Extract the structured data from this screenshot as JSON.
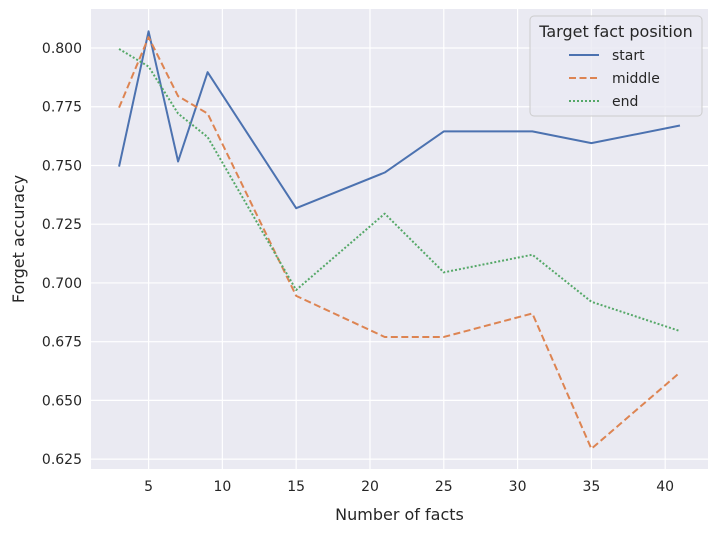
{
  "chart_data": {
    "type": "line",
    "xlabel": "Number of facts",
    "ylabel": "Forget accuracy",
    "xlim": [
      1.1,
      42.9
    ],
    "ylim": [
      0.6208,
      0.8166
    ],
    "xticks": [
      5,
      10,
      15,
      20,
      25,
      30,
      35,
      40
    ],
    "yticks": [
      0.625,
      0.65,
      0.675,
      0.7,
      0.725,
      0.75,
      0.775,
      0.8
    ],
    "grid": true,
    "legend": {
      "title": "Target fact position",
      "placement": "top-right"
    },
    "series": [
      {
        "name": "start",
        "color": "#4c72b0",
        "dash": "solid",
        "points": [
          [
            3,
            0.7495
          ],
          [
            5,
            0.8071
          ],
          [
            7,
            0.7517
          ],
          [
            9,
            0.7897
          ],
          [
            15,
            0.7318
          ],
          [
            21,
            0.747
          ],
          [
            25,
            0.7645
          ],
          [
            31,
            0.7645
          ],
          [
            35,
            0.7595
          ],
          [
            41,
            0.767
          ]
        ]
      },
      {
        "name": "middle",
        "color": "#dd8452",
        "dash": "dashed",
        "points": [
          [
            3,
            0.7746
          ],
          [
            5,
            0.8046
          ],
          [
            7,
            0.7795
          ],
          [
            9,
            0.7721
          ],
          [
            15,
            0.6945
          ],
          [
            21,
            0.677
          ],
          [
            25,
            0.677
          ],
          [
            31,
            0.687
          ],
          [
            35,
            0.6294
          ],
          [
            41,
            0.6619
          ]
        ]
      },
      {
        "name": "end",
        "color": "#55a868",
        "dash": "dotted",
        "points": [
          [
            3,
            0.7996
          ],
          [
            5,
            0.7921
          ],
          [
            7,
            0.7721
          ],
          [
            9,
            0.7621
          ],
          [
            15,
            0.697
          ],
          [
            21,
            0.7295
          ],
          [
            25,
            0.7045
          ],
          [
            31,
            0.712
          ],
          [
            35,
            0.692
          ],
          [
            41,
            0.6795
          ]
        ]
      }
    ]
  }
}
